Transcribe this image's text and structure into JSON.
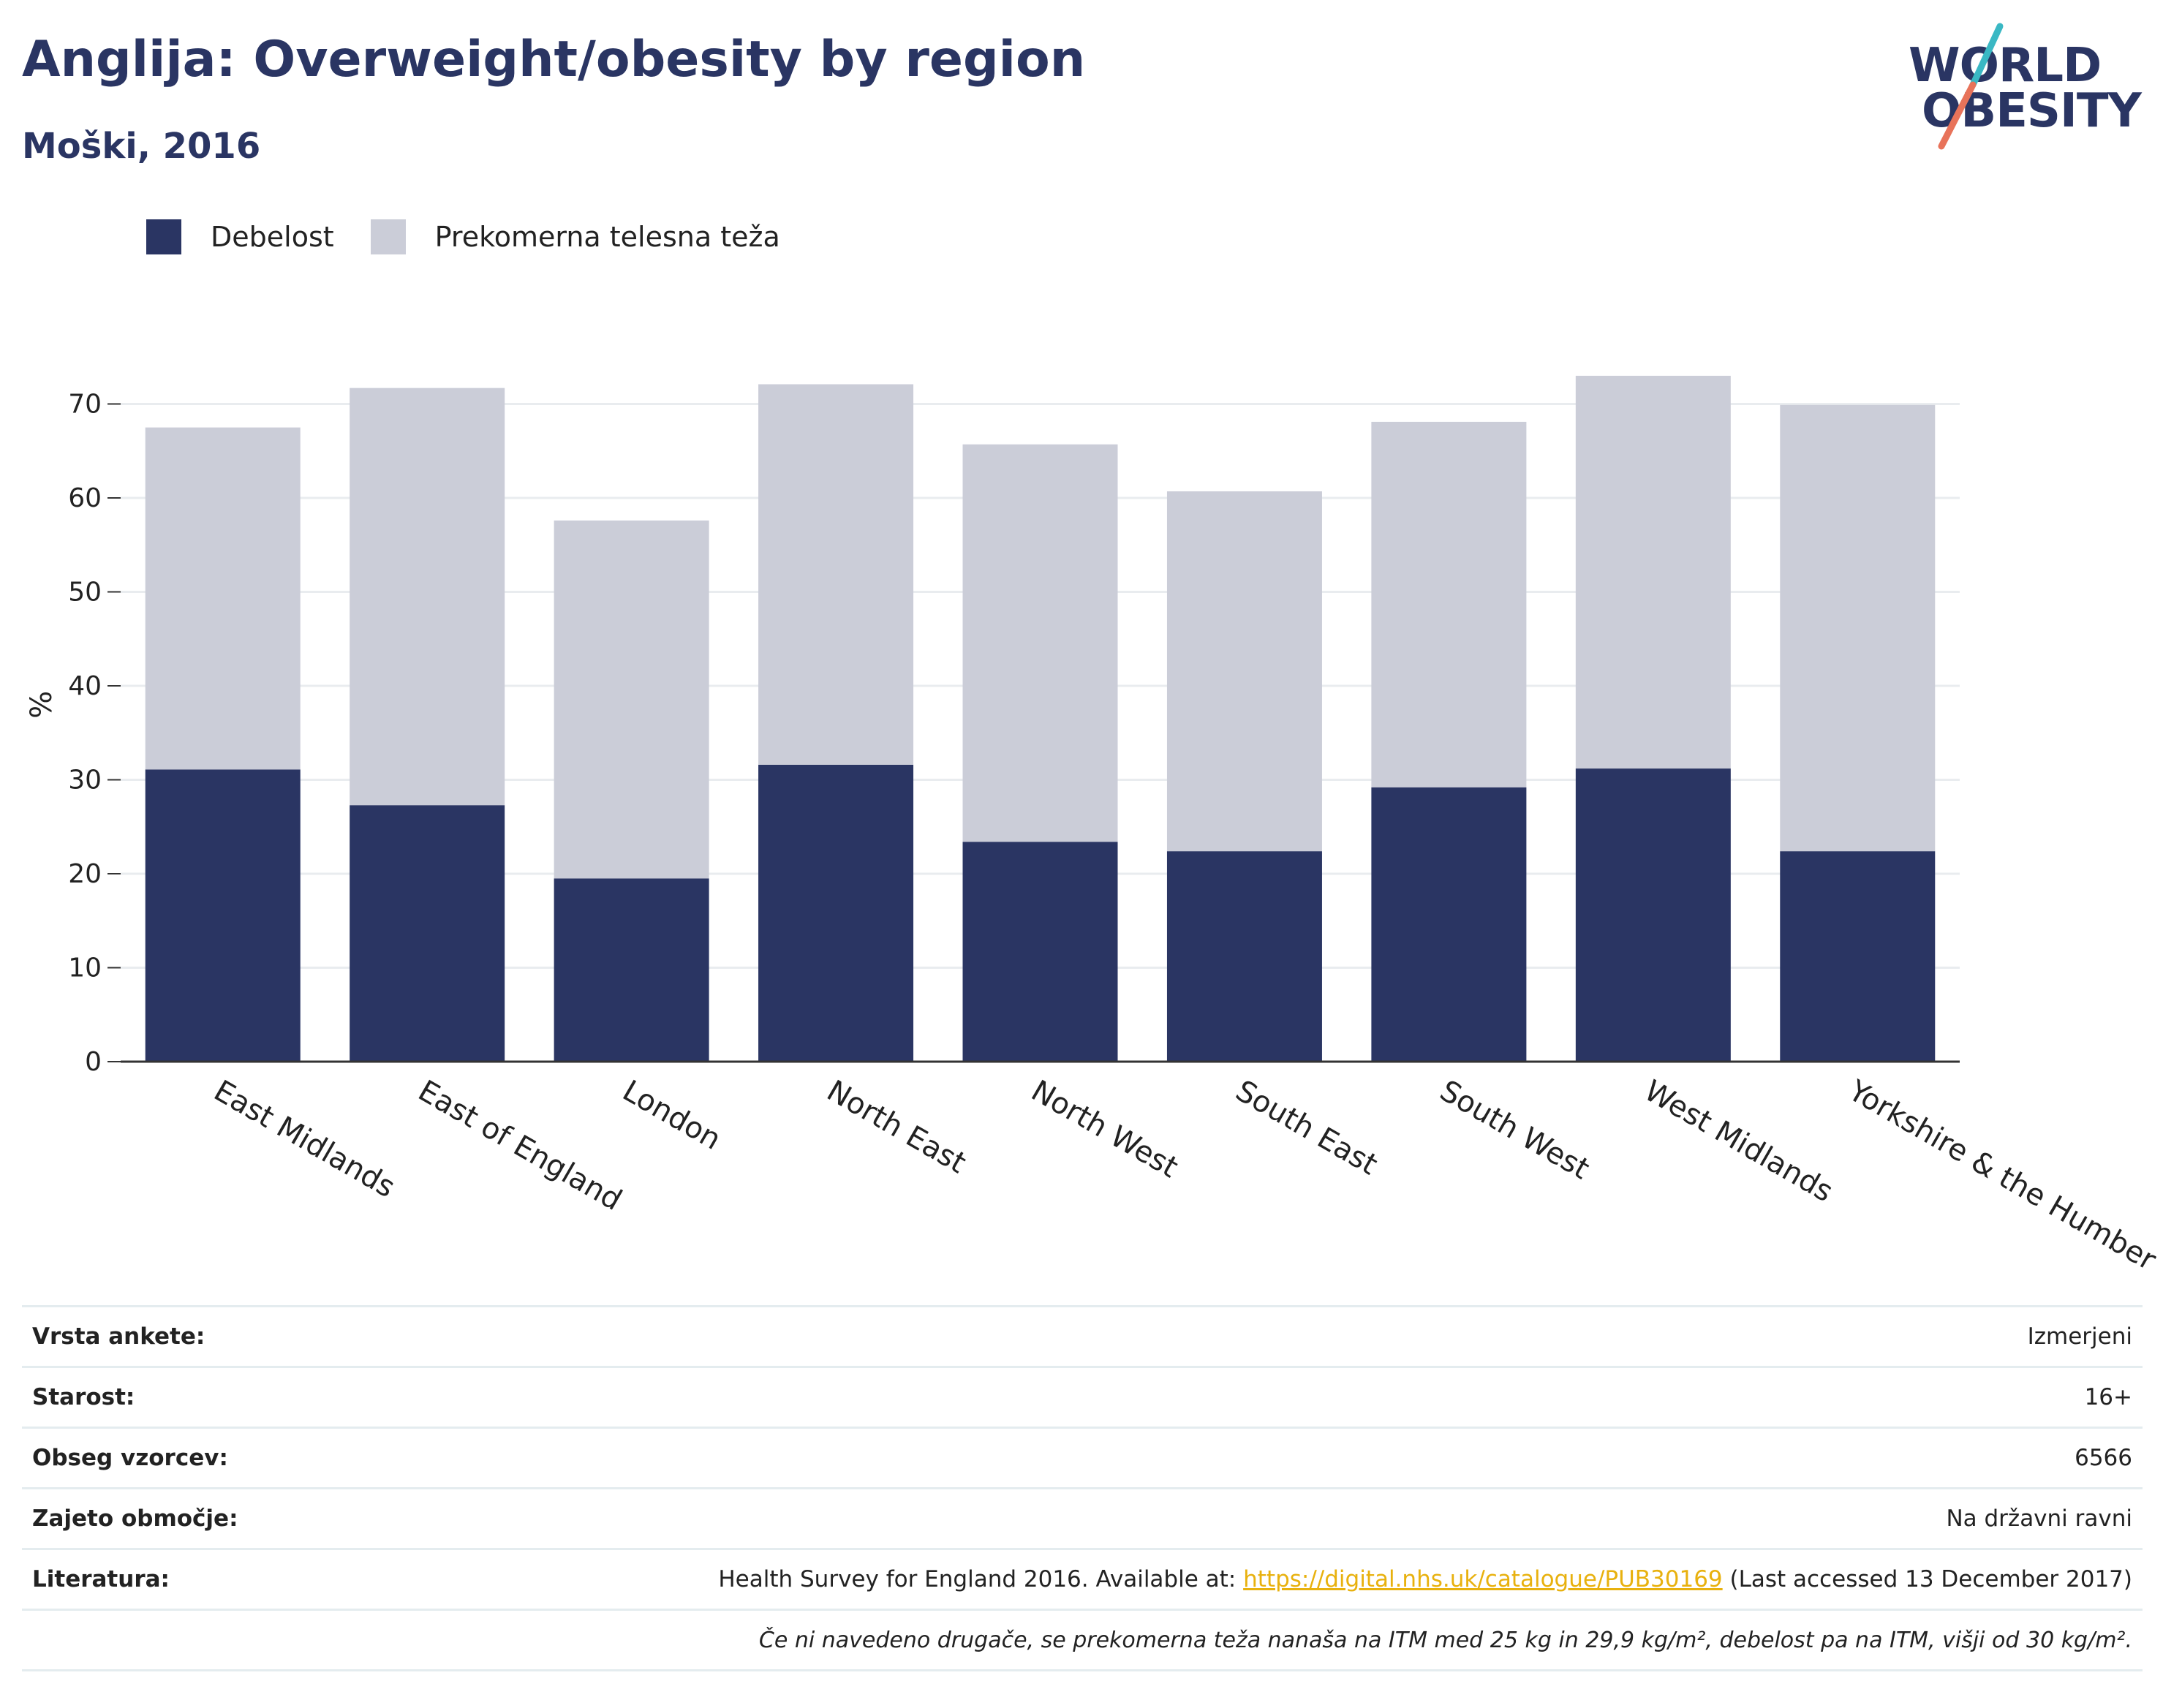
{
  "header": {
    "title": "Anglija: Overweight/obesity by region",
    "subtitle": "Moški, 2016"
  },
  "logo": {
    "line1": "WORLD",
    "line2": "OBESITY"
  },
  "colors": {
    "obesity": "#2a3563",
    "overweight": "#cbcdd8",
    "title": "#2a3563",
    "logo_slash_top": "#3ab8c4",
    "logo_slash_bottom": "#e8735a",
    "link": "#e8b10e"
  },
  "chart_data": {
    "type": "bar",
    "stacked": true,
    "title": "",
    "xlabel": "",
    "ylabel": "%",
    "ylim": [
      0,
      75
    ],
    "yticks": [
      0,
      10,
      20,
      30,
      40,
      50,
      60,
      70
    ],
    "grid": true,
    "legend_position": "top-left",
    "categories": [
      "East Midlands",
      "East of England",
      "London",
      "North East",
      "North West",
      "South East",
      "South West",
      "West Midlands",
      "Yorkshire & the Humber"
    ],
    "series": [
      {
        "name": "Debelost",
        "color": "#2a3563",
        "values": [
          31.1,
          27.3,
          19.5,
          31.6,
          23.4,
          22.4,
          29.2,
          31.2,
          22.4
        ]
      },
      {
        "name": "Prekomerna telesna teža",
        "color": "#cbcdd8",
        "values": [
          36.4,
          44.4,
          38.1,
          40.5,
          42.3,
          38.3,
          38.9,
          41.8,
          47.5
        ]
      }
    ]
  },
  "info": {
    "rows": [
      {
        "key": "Vrsta ankete:",
        "value": "Izmerjeni"
      },
      {
        "key": "Starost:",
        "value": "16+"
      },
      {
        "key": "Obseg vzorcev:",
        "value": "6566"
      },
      {
        "key": "Zajeto območje:",
        "value": "Na državni ravni"
      }
    ],
    "reference": {
      "key": "Literatura:",
      "prefix": "Health Survey for England 2016. Available at: ",
      "link": "https://digital.nhs.uk/catalogue/PUB30169",
      "suffix": " (Last accessed 13 December 2017)"
    },
    "note": "Če ni navedeno drugače, se prekomerna teža nanaša na ITM med 25 kg in 29,9 kg/m², debelost pa na ITM, višji od 30 kg/m²."
  }
}
